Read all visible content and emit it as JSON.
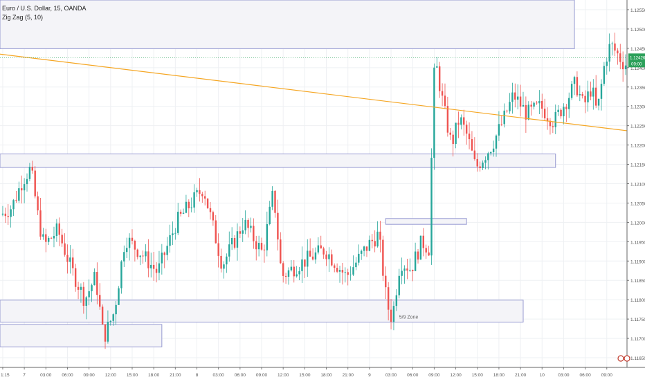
{
  "legend": {
    "symbol_line": "Euro / U.S. Dollar, 15, OANDA",
    "indicator_line": "Zig Zag (5, 10)"
  },
  "chart_data": {
    "type": "candlestick",
    "title": "Euro / U.S. Dollar, 15, OANDA",
    "indicator": "Zig Zag (5, 10)",
    "ylim": [
      1.11625,
      1.12575
    ],
    "y_ticks": [
      {
        "label": "1.12550",
        "value": 1.1255
      },
      {
        "label": "1.12500",
        "value": 1.125
      },
      {
        "label": "1.12450",
        "value": 1.1245
      },
      {
        "label": "1.12400",
        "value": 1.124
      },
      {
        "label": "1.12350",
        "value": 1.1235
      },
      {
        "label": "1.12300",
        "value": 1.123
      },
      {
        "label": "1.12250",
        "value": 1.1225
      },
      {
        "label": "1.12200",
        "value": 1.122
      },
      {
        "label": "1.12150",
        "value": 1.1215
      },
      {
        "label": "1.12100",
        "value": 1.121
      },
      {
        "label": "1.12050",
        "value": 1.1205
      },
      {
        "label": "1.12000",
        "value": 1.12
      },
      {
        "label": "1.11950",
        "value": 1.1195
      },
      {
        "label": "1.11900",
        "value": 1.119
      },
      {
        "label": "1.11850",
        "value": 1.1185
      },
      {
        "label": "1.11800",
        "value": 1.118
      },
      {
        "label": "1.11750",
        "value": 1.1175
      },
      {
        "label": "1.11700",
        "value": 1.117
      },
      {
        "label": "1.11650",
        "value": 1.1165
      }
    ],
    "x_ticks": [
      {
        "label": "1:15",
        "bar": 0
      },
      {
        "label": "7",
        "bar": 8
      },
      {
        "label": "03:00",
        "bar": 16
      },
      {
        "label": "06:00",
        "bar": 24
      },
      {
        "label": "09:00",
        "bar": 32
      },
      {
        "label": "12:00",
        "bar": 40
      },
      {
        "label": "15:00",
        "bar": 48
      },
      {
        "label": "18:00",
        "bar": 56
      },
      {
        "label": "21:00",
        "bar": 64
      },
      {
        "label": "8",
        "bar": 72
      },
      {
        "label": "03:00",
        "bar": 80
      },
      {
        "label": "06:00",
        "bar": 88
      },
      {
        "label": "09:00",
        "bar": 96
      },
      {
        "label": "12:00",
        "bar": 104
      },
      {
        "label": "15:00",
        "bar": 112
      },
      {
        "label": "18:00",
        "bar": 120
      },
      {
        "label": "21:00",
        "bar": 128
      },
      {
        "label": "9",
        "bar": 136
      },
      {
        "label": "03:00",
        "bar": 144
      },
      {
        "label": "06:00",
        "bar": 152
      },
      {
        "label": "09:00",
        "bar": 160
      },
      {
        "label": "12:00",
        "bar": 168
      },
      {
        "label": "15:00",
        "bar": 176
      },
      {
        "label": "18:00",
        "bar": 184
      },
      {
        "label": "21:00",
        "bar": 192
      },
      {
        "label": "10",
        "bar": 200
      },
      {
        "label": "03:00",
        "bar": 208
      },
      {
        "label": "06:00",
        "bar": 216
      },
      {
        "label": "09:00",
        "bar": 224
      }
    ],
    "bar_count": 232,
    "price_path": [
      [
        0,
        1.1202
      ],
      [
        4,
        1.1204
      ],
      [
        8,
        1.1211
      ],
      [
        11,
        1.1214
      ],
      [
        14,
        1.12
      ],
      [
        16,
        1.1194
      ],
      [
        21,
        1.1198
      ],
      [
        26,
        1.1188
      ],
      [
        31,
        1.118
      ],
      [
        35,
        1.1186
      ],
      [
        38,
        1.117
      ],
      [
        42,
        1.1177
      ],
      [
        46,
        1.1196
      ],
      [
        52,
        1.1192
      ],
      [
        58,
        1.1187
      ],
      [
        65,
        1.12
      ],
      [
        75,
        1.1209
      ],
      [
        82,
        1.1189
      ],
      [
        90,
        1.12
      ],
      [
        97,
        1.1192
      ],
      [
        101,
        1.1208
      ],
      [
        104,
        1.1186
      ],
      [
        110,
        1.1189
      ],
      [
        120,
        1.1193
      ],
      [
        128,
        1.1186
      ],
      [
        136,
        1.1194
      ],
      [
        140,
        1.1197
      ],
      [
        143,
        1.1179
      ],
      [
        145,
        1.1175
      ],
      [
        148,
        1.119
      ],
      [
        152,
        1.1188
      ],
      [
        156,
        1.1195
      ],
      [
        159,
        1.1193
      ],
      [
        160,
        1.1232
      ],
      [
        161,
        1.1242
      ],
      [
        164,
        1.123
      ],
      [
        167,
        1.122
      ],
      [
        170,
        1.1227
      ],
      [
        173,
        1.1222
      ],
      [
        176,
        1.1214
      ],
      [
        182,
        1.122
      ],
      [
        186,
        1.1226
      ],
      [
        190,
        1.1233
      ],
      [
        195,
        1.1228
      ],
      [
        200,
        1.123
      ],
      [
        205,
        1.1226
      ],
      [
        210,
        1.1232
      ],
      [
        213,
        1.1236
      ],
      [
        216,
        1.123
      ],
      [
        219,
        1.1235
      ],
      [
        221,
        1.1228
      ],
      [
        224,
        1.1242
      ],
      [
        226,
        1.1246
      ],
      [
        228,
        1.1244
      ],
      [
        231,
        1.1241
      ]
    ],
    "trendline": {
      "start": [
        0,
        1.12435
      ],
      "end": [
        232,
        1.12237
      ],
      "color": "#f5a623"
    },
    "zones": [
      {
        "bars": [
          0,
          212
        ],
        "price_top": 1.12575,
        "price_bottom": 1.12449,
        "label": ""
      },
      {
        "bars": [
          0,
          205
        ],
        "price_top": 1.12177,
        "price_bottom": 1.12142,
        "label": ""
      },
      {
        "bars": [
          142,
          172
        ],
        "price_top": 1.1201,
        "price_bottom": 1.11995,
        "label": ""
      },
      {
        "bars": [
          0,
          193
        ],
        "price_top": 1.11799,
        "price_bottom": 1.11742,
        "label": "5/9 Zone"
      },
      {
        "bars": [
          0,
          59
        ],
        "price_top": 1.11736,
        "price_bottom": 1.11678,
        "label": ""
      }
    ],
    "current_price": {
      "label": "1.12426",
      "value": 1.12426,
      "time_label": "09:00"
    },
    "colors": {
      "up": "#26a69a",
      "down": "#ef5350",
      "axis": "#555555",
      "zone_border": "#9598d1",
      "zone_fill": "#f4f4f8",
      "price_tag": "#2ca05a"
    }
  }
}
